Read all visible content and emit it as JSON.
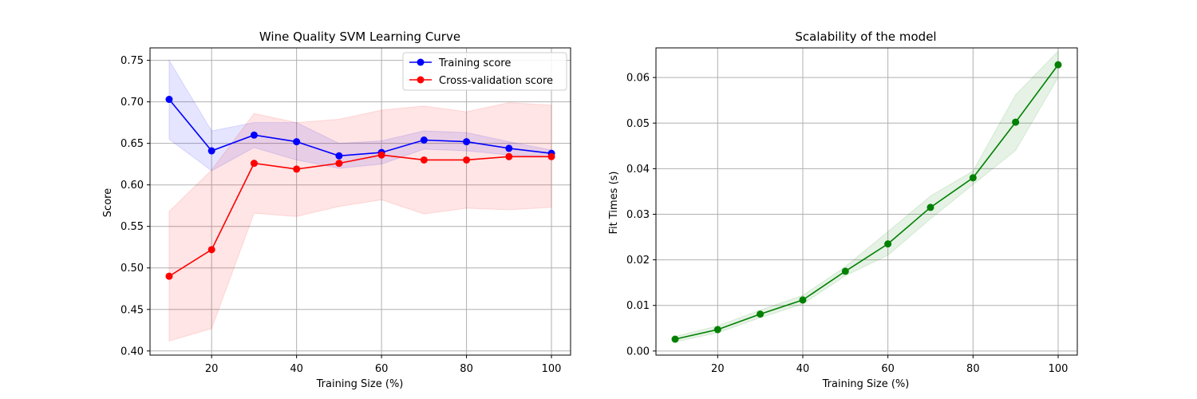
{
  "chart_data": [
    {
      "type": "line",
      "title": "Wine Quality SVM Learning Curve",
      "xlabel": "Training Size (%)",
      "ylabel": "Score",
      "xlim": [
        5.5,
        104.5
      ],
      "ylim": [
        0.395,
        0.765
      ],
      "xticks": [
        20,
        40,
        60,
        80,
        100
      ],
      "yticks": [
        0.4,
        0.45,
        0.5,
        0.55,
        0.6,
        0.65,
        0.7,
        0.75
      ],
      "ytick_labels": [
        "0.40",
        "0.45",
        "0.50",
        "0.55",
        "0.60",
        "0.65",
        "0.70",
        "0.75"
      ],
      "grid": true,
      "legend_position": "top-right",
      "x": [
        10,
        20,
        30,
        40,
        50,
        60,
        70,
        80,
        90,
        100
      ],
      "series": [
        {
          "name": "Training score",
          "color": "#0000ff",
          "band_color": "#0000ff",
          "values": [
            0.703,
            0.641,
            0.66,
            0.652,
            0.635,
            0.639,
            0.654,
            0.652,
            0.644,
            0.638
          ],
          "band_low": [
            0.655,
            0.617,
            0.645,
            0.63,
            0.62,
            0.625,
            0.643,
            0.641,
            0.636,
            0.634
          ],
          "band_high": [
            0.75,
            0.665,
            0.675,
            0.675,
            0.65,
            0.653,
            0.665,
            0.663,
            0.652,
            0.642
          ]
        },
        {
          "name": "Cross-validation score",
          "color": "#ff0000",
          "band_color": "#ff0000",
          "values": [
            0.49,
            0.522,
            0.626,
            0.619,
            0.626,
            0.636,
            0.63,
            0.63,
            0.634,
            0.634
          ],
          "band_low": [
            0.412,
            0.427,
            0.566,
            0.562,
            0.574,
            0.582,
            0.565,
            0.572,
            0.57,
            0.573
          ],
          "band_high": [
            0.568,
            0.618,
            0.686,
            0.675,
            0.679,
            0.69,
            0.695,
            0.688,
            0.699,
            0.696
          ]
        }
      ]
    },
    {
      "type": "line",
      "title": "Scalability of the model",
      "xlabel": "Training Size (%)",
      "ylabel": "Fit Times (s)",
      "xlim": [
        5.5,
        104.5
      ],
      "ylim": [
        -0.0009,
        0.0665
      ],
      "xticks": [
        20,
        40,
        60,
        80,
        100
      ],
      "yticks": [
        0.0,
        0.01,
        0.02,
        0.03,
        0.04,
        0.05,
        0.06
      ],
      "ytick_labels": [
        "0.00",
        "0.01",
        "0.02",
        "0.03",
        "0.04",
        "0.05",
        "0.06"
      ],
      "grid": true,
      "x": [
        10,
        20,
        30,
        40,
        50,
        60,
        70,
        80,
        90,
        100
      ],
      "series": [
        {
          "color": "#008000",
          "band_color": "#008000",
          "values": [
            0.0026,
            0.0047,
            0.0081,
            0.0112,
            0.0175,
            0.0235,
            0.0315,
            0.038,
            0.0502,
            0.0628
          ],
          "band_low": [
            0.002,
            0.004,
            0.0073,
            0.0103,
            0.0165,
            0.021,
            0.029,
            0.0365,
            0.044,
            0.06
          ],
          "band_high": [
            0.0032,
            0.0055,
            0.009,
            0.0122,
            0.0185,
            0.0262,
            0.034,
            0.0395,
            0.0562,
            0.0658
          ]
        }
      ]
    }
  ]
}
